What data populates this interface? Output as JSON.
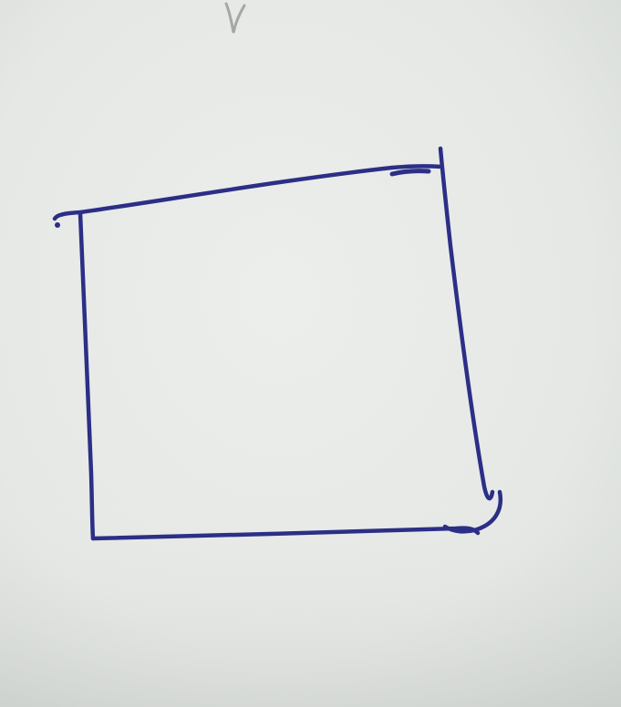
{
  "scene": {
    "description_kind": "photo",
    "paper_color": "#e6e9e6",
    "paper_shadow_color": "#d3d7d3",
    "ink_color": "#2b2f86",
    "pencil_mark_color": "#8e918e"
  },
  "drawing": {
    "shape": "quadrilateral",
    "stroke_style": "hand-drawn"
  }
}
